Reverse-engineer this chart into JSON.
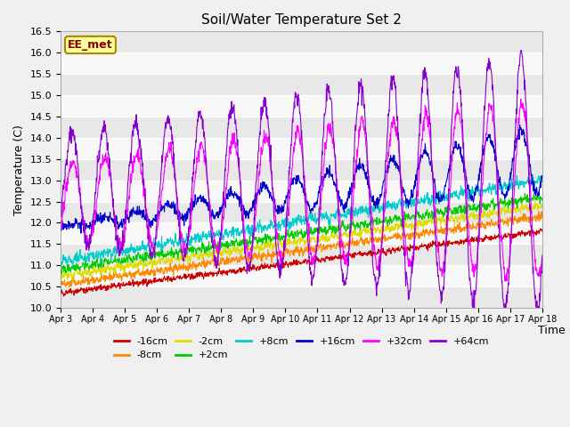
{
  "title": "Soil/Water Temperature Set 2",
  "ylabel": "Temperature (C)",
  "xlabel": "Time",
  "ylim": [
    10.0,
    16.5
  ],
  "yticks": [
    10.0,
    10.5,
    11.0,
    11.5,
    12.0,
    12.5,
    13.0,
    13.5,
    14.0,
    14.5,
    15.0,
    15.5,
    16.0,
    16.5
  ],
  "xtick_labels": [
    "Apr 3",
    "Apr 4",
    "Apr 5",
    "Apr 6",
    "Apr 7",
    "Apr 8",
    "Apr 9",
    "Apr 10",
    "Apr 11",
    "Apr 12",
    "Apr 13",
    "Apr 14",
    "Apr 15",
    "Apr 16",
    "Apr 17",
    "Apr 18"
  ],
  "series_labels": [
    "-16cm",
    "-8cm",
    "-2cm",
    "+2cm",
    "+8cm",
    "+16cm",
    "+32cm",
    "+64cm"
  ],
  "series_colors": [
    "#cc0000",
    "#ff8800",
    "#dddd00",
    "#00cc00",
    "#00cccc",
    "#0000cc",
    "#ff00ff",
    "#8800cc"
  ],
  "annotation_text": "EE_met",
  "annotation_bg": "#ffff99",
  "annotation_border": "#aa8800",
  "n_points": 1440,
  "days": 15
}
